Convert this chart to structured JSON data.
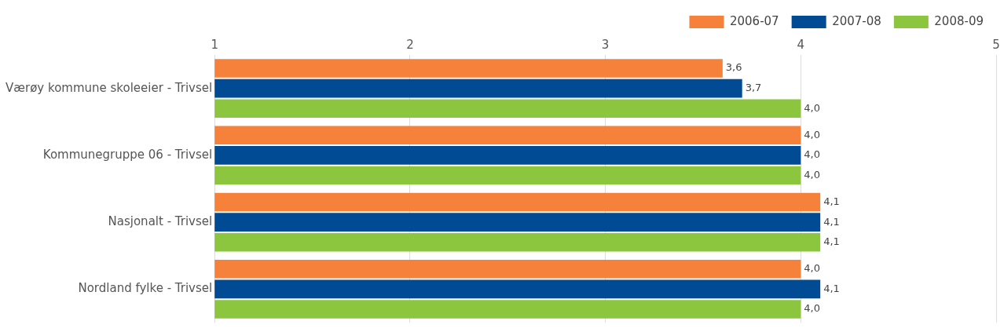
{
  "chart_data": {
    "type": "bar",
    "orientation": "horizontal",
    "categories": [
      "Værøy kommune skoleeier - Trivsel",
      "Kommunegruppe 06 - Trivsel",
      "Nasjonalt - Trivsel",
      "Nordland fylke - Trivsel"
    ],
    "series": [
      {
        "name": "2006-07",
        "color": "#f5813a",
        "values": [
          3.6,
          4.0,
          4.1,
          4.0
        ],
        "value_labels": [
          "3,6",
          "4,0",
          "4,1",
          "4,0"
        ]
      },
      {
        "name": "2007-08",
        "color": "#004b93",
        "values": [
          3.7,
          4.0,
          4.1,
          4.1
        ],
        "value_labels": [
          "3,7",
          "4,0",
          "4,1",
          "4,1"
        ]
      },
      {
        "name": "2008-09",
        "color": "#8cc63f",
        "values": [
          4.0,
          4.0,
          4.1,
          4.0
        ],
        "value_labels": [
          "4,0",
          "4,0",
          "4,1",
          "4,0"
        ]
      }
    ],
    "xlim": [
      1,
      5
    ],
    "xticks": [
      1,
      2,
      3,
      4,
      5
    ],
    "grid": "x",
    "legend": "top right"
  }
}
